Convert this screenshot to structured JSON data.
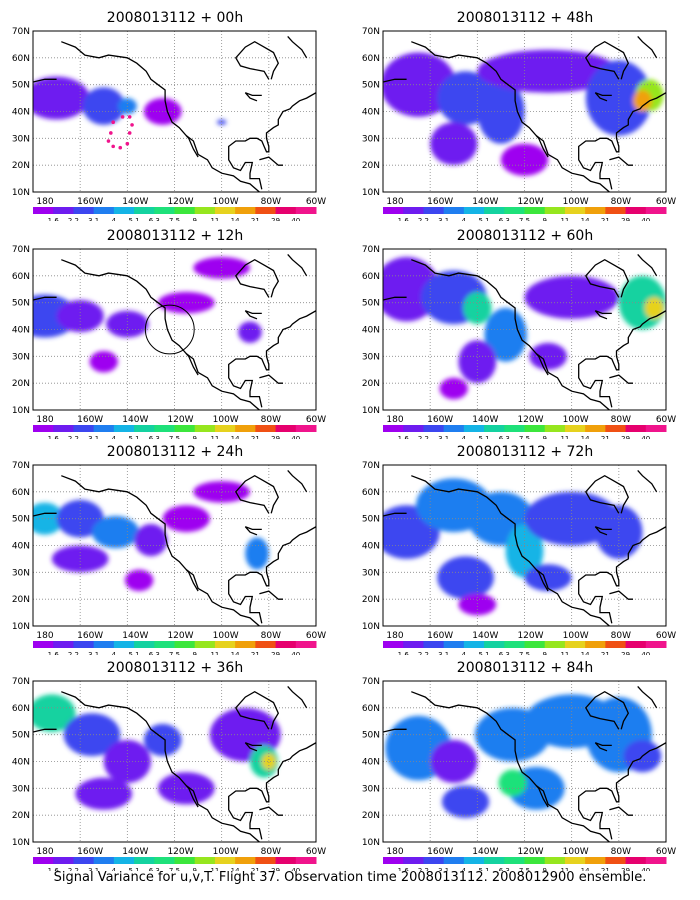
{
  "panels": [
    {
      "title": "2008013112 + 00h"
    },
    {
      "title": "2008013112 + 48h"
    },
    {
      "title": "2008013112 + 12h"
    },
    {
      "title": "2008013112 + 60h"
    },
    {
      "title": "2008013112 + 24h"
    },
    {
      "title": "2008013112 + 72h"
    },
    {
      "title": "2008013112 + 36h"
    },
    {
      "title": "2008013112 + 84h"
    }
  ],
  "lat_labels": [
    "70N",
    "60N",
    "50N",
    "40N",
    "30N",
    "20N",
    "10N"
  ],
  "lon_labels": [
    "180",
    "160W",
    "140W",
    "120W",
    "100W",
    "80W",
    "60W"
  ],
  "legend": {
    "labels": [
      "1.6",
      "2.2",
      "3.1",
      "4",
      "5.1",
      "6.3",
      "7.5",
      "9",
      "11",
      "14",
      "21",
      "29",
      "40"
    ],
    "colors": [
      "#9e00f0",
      "#6e1cf0",
      "#3c46f0",
      "#1f7ef0",
      "#14b4e6",
      "#14d2a0",
      "#1ee17a",
      "#3ce63c",
      "#96e61e",
      "#e6d21e",
      "#f0a00a",
      "#f05014",
      "#e6006e",
      "#f0148c"
    ]
  },
  "caption": "Signal Variance for u,v,T. Flight 37. Observation time 2008013112. 2008012900 ensemble."
}
